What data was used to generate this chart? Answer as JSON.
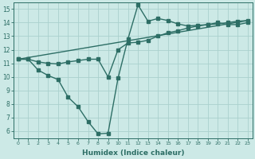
{
  "line1_x": [
    0,
    1,
    2,
    3,
    4,
    5,
    6,
    7,
    8,
    9,
    10,
    11,
    12,
    13,
    14,
    15,
    16,
    17,
    18,
    19,
    20,
    21,
    22,
    23
  ],
  "line1_y": [
    11.3,
    11.3,
    10.5,
    10.1,
    9.8,
    8.5,
    7.8,
    6.7,
    5.8,
    5.85,
    9.9,
    12.8,
    15.3,
    14.1,
    14.3,
    14.15,
    13.9,
    13.75,
    13.8,
    13.85,
    14.0,
    13.85,
    13.85,
    14.0
  ],
  "line2_x": [
    0,
    1,
    2,
    3,
    4,
    5,
    6,
    7,
    8,
    9,
    10,
    11,
    12,
    13,
    14,
    15,
    16,
    17,
    18,
    19,
    20,
    21,
    22,
    23
  ],
  "line2_y": [
    11.3,
    11.3,
    11.1,
    11.0,
    10.95,
    11.1,
    11.2,
    11.3,
    11.3,
    10.0,
    12.0,
    12.5,
    12.55,
    12.7,
    13.0,
    13.25,
    13.4,
    13.6,
    13.75,
    13.85,
    13.9,
    14.0,
    14.1,
    14.15
  ],
  "line3_x": [
    0,
    23
  ],
  "line3_y": [
    11.3,
    14.15
  ],
  "line_color": "#2d6e65",
  "bg_color": "#cce9e6",
  "grid_color": "#aad1cd",
  "xlabel": "Humidex (Indice chaleur)",
  "xlim": [
    -0.5,
    23.5
  ],
  "ylim": [
    5.5,
    15.5
  ],
  "xticks": [
    0,
    1,
    2,
    3,
    4,
    5,
    6,
    7,
    8,
    9,
    10,
    11,
    12,
    13,
    14,
    15,
    16,
    17,
    18,
    19,
    20,
    21,
    22,
    23
  ],
  "yticks": [
    6,
    7,
    8,
    9,
    10,
    11,
    12,
    13,
    14,
    15
  ],
  "marker_size": 2.5,
  "line_width": 1.0
}
